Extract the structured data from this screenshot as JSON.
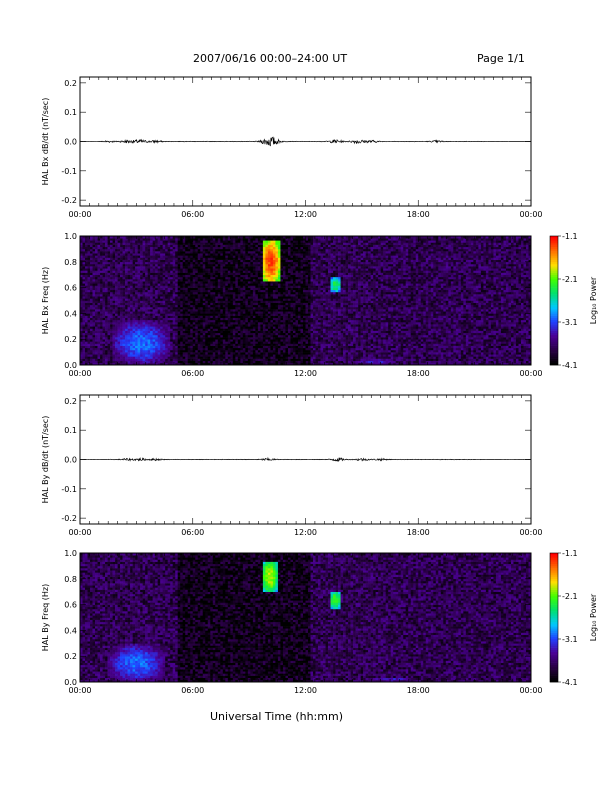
{
  "header": {
    "title": "2007/06/16  00:00–24:00 UT",
    "page": "Page 1/1"
  },
  "xlabel": "Universal Time (hh:mm)",
  "colorbar": {
    "label": "Log₁₀ Power",
    "ticks": [
      "-1.1",
      "-2.1",
      "-3.1",
      "-4.1"
    ],
    "colors": [
      "#000000",
      "#2a0046",
      "#4b0096",
      "#2040ff",
      "#00c8ff",
      "#00e070",
      "#40ff00",
      "#ffe000",
      "#ff7000",
      "#ff0000"
    ]
  },
  "chart_data": [
    {
      "type": "line",
      "ylabel": "HAL Bx dB/dt (nT/sec)",
      "ylim": [
        -0.22,
        0.22
      ],
      "yticks": [
        "0.2",
        "0.1",
        "0.0",
        "-0.1",
        "-0.2"
      ],
      "xticks": [
        "00:00",
        "06:00",
        "12:00",
        "18:00",
        "00:00"
      ],
      "xlim_hours": [
        0,
        24
      ],
      "series": [
        {
          "x": [
            1.5,
            2.5,
            3.2,
            4.0,
            10.0,
            10.3,
            13.6,
            14.8,
            15.5,
            19.0
          ],
          "amplitude": [
            0.003,
            0.005,
            0.006,
            0.004,
            0.012,
            0.009,
            0.006,
            0.007,
            0.004,
            0.003
          ]
        }
      ]
    },
    {
      "type": "heatmap",
      "ylabel": "HAL Bx Freq (Hz)",
      "ylim": [
        0,
        1.0
      ],
      "yticks": [
        "1.0",
        "0.8",
        "0.6",
        "0.4",
        "0.2",
        "0.0"
      ],
      "xticks": [
        "00:00",
        "06:00",
        "12:00",
        "18:00",
        "00:00"
      ],
      "xlim_hours": [
        0,
        24
      ],
      "zlim_log10_power": [
        -4.1,
        -1.1
      ],
      "features": [
        {
          "t_start": 1.7,
          "t_end": 4.8,
          "f_low": 0.0,
          "f_high": 0.35,
          "log10_power": -3.0
        },
        {
          "t_start": 9.7,
          "t_end": 10.6,
          "f_low": 0.65,
          "f_high": 0.96,
          "log10_power": -1.3
        },
        {
          "t_start": 13.3,
          "t_end": 13.9,
          "f_low": 0.57,
          "f_high": 0.68,
          "log10_power": -2.3
        },
        {
          "t_start": 14.5,
          "t_end": 17.0,
          "f_low": 0.0,
          "f_high": 0.06,
          "log10_power": -3.3
        },
        {
          "t_start": 17.0,
          "t_end": 21.0,
          "f_low": 0.0,
          "f_high": 0.03,
          "log10_power": -3.5
        }
      ]
    },
    {
      "type": "line",
      "ylabel": "HAL By dB/dt (nT/sec)",
      "ylim": [
        -0.22,
        0.22
      ],
      "yticks": [
        "0.2",
        "0.1",
        "0.0",
        "-0.1",
        "-0.2"
      ],
      "xticks": [
        "00:00",
        "06:00",
        "12:00",
        "18:00",
        "00:00"
      ],
      "xlim_hours": [
        0,
        24
      ],
      "series": [
        {
          "x": [
            2.5,
            3.2,
            4.0,
            10.0,
            13.7,
            15.0,
            16.0
          ],
          "amplitude": [
            0.003,
            0.004,
            0.003,
            0.004,
            0.006,
            0.004,
            0.003
          ]
        }
      ]
    },
    {
      "type": "heatmap",
      "ylabel": "HAL By Freq (Hz)",
      "ylim": [
        0,
        1.0
      ],
      "yticks": [
        "1.0",
        "0.8",
        "0.6",
        "0.4",
        "0.2",
        "0.0"
      ],
      "xticks": [
        "00:00",
        "06:00",
        "12:00",
        "18:00",
        "00:00"
      ],
      "xlim_hours": [
        0,
        24
      ],
      "zlim_log10_power": [
        -4.1,
        -1.1
      ],
      "features": [
        {
          "t_start": 1.5,
          "t_end": 4.5,
          "f_low": 0.0,
          "f_high": 0.3,
          "log10_power": -3.0
        },
        {
          "t_start": 9.7,
          "t_end": 10.5,
          "f_low": 0.7,
          "f_high": 0.94,
          "log10_power": -1.9
        },
        {
          "t_start": 13.3,
          "t_end": 13.9,
          "f_low": 0.57,
          "f_high": 0.7,
          "log10_power": -2.1
        },
        {
          "t_start": 15.0,
          "t_end": 18.0,
          "f_low": 0.0,
          "f_high": 0.04,
          "log10_power": -3.3
        }
      ]
    }
  ]
}
